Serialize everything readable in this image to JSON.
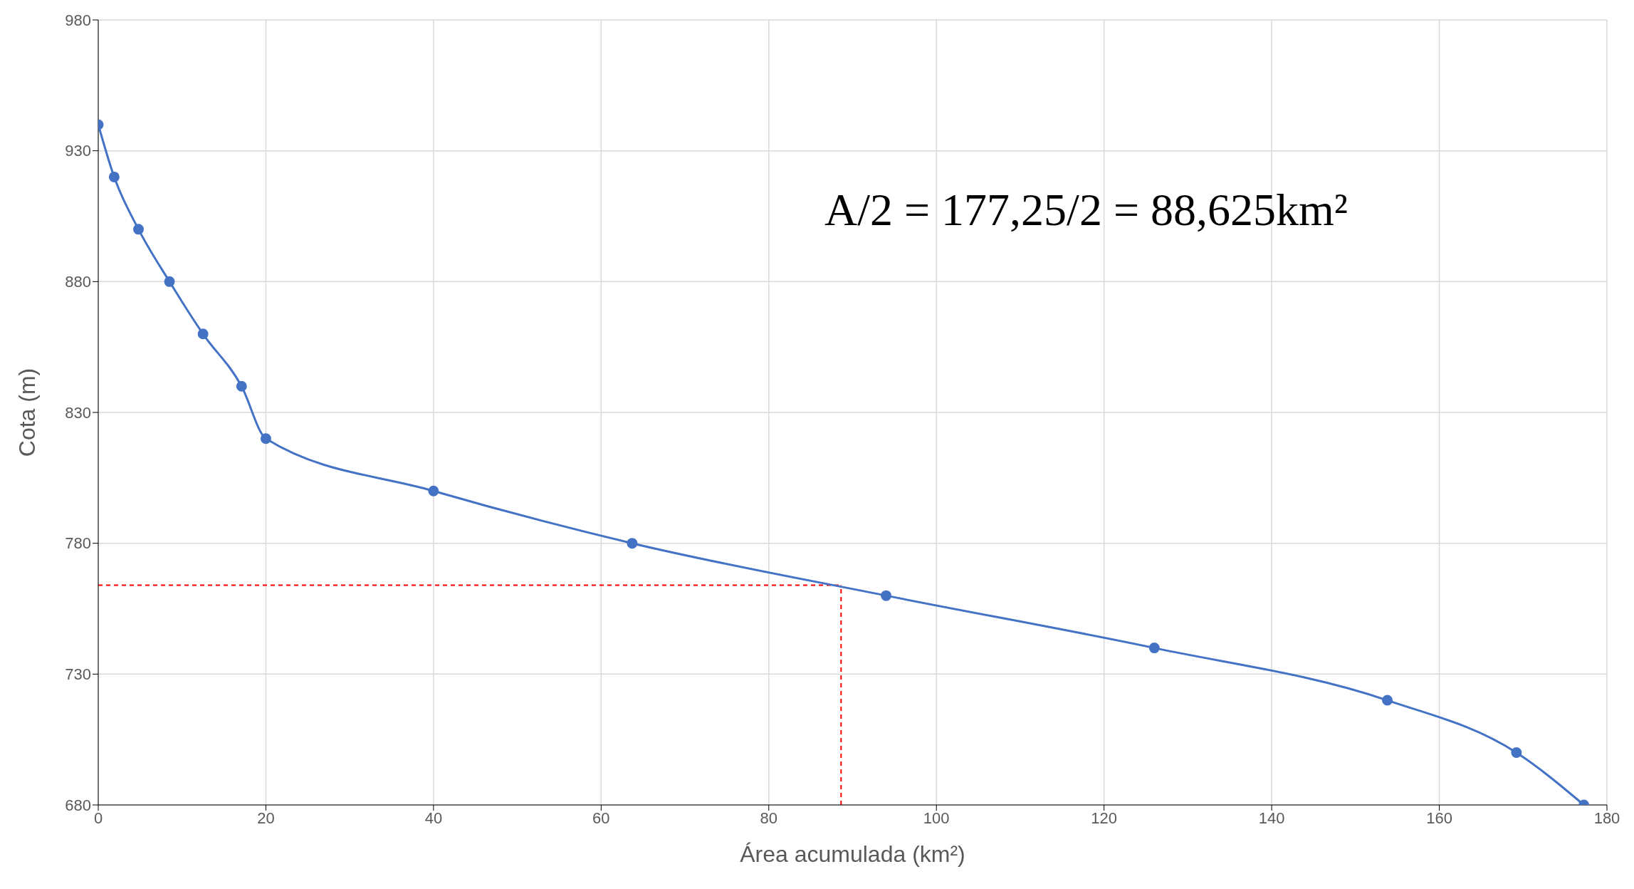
{
  "chart_data": {
    "type": "line",
    "xlabel": "Área acumulada (km²)",
    "ylabel": "Cota (m)",
    "x": [
      0,
      1.9,
      4.8,
      8.5,
      12.5,
      17.1,
      20,
      40,
      63.7,
      94,
      126,
      153.8,
      169.2,
      177.25
    ],
    "series": [
      {
        "color": "#4472c4",
        "values": [
          940,
          920,
          900,
          880,
          860,
          840,
          820,
          800,
          780,
          760,
          740,
          720,
          700,
          680
        ]
      }
    ],
    "xlim": [
      0,
      180
    ],
    "xticks": [
      0,
      20,
      40,
      60,
      80,
      100,
      120,
      140,
      160,
      180
    ],
    "ylim": [
      680,
      980
    ],
    "yticks": [
      680,
      730,
      780,
      830,
      880,
      930,
      980
    ],
    "grid": true,
    "marker": "circle",
    "line_style": "solid",
    "ref_lines": [
      {
        "axis": "x",
        "value": 88.625,
        "color": "#ff0000",
        "line_style": "dashed"
      },
      {
        "axis": "y",
        "value": 764,
        "color": "#ff0000",
        "line_style": "dashed"
      }
    ],
    "annotations": [
      "A/2 = 177,25/2 = 88,625km²"
    ]
  }
}
